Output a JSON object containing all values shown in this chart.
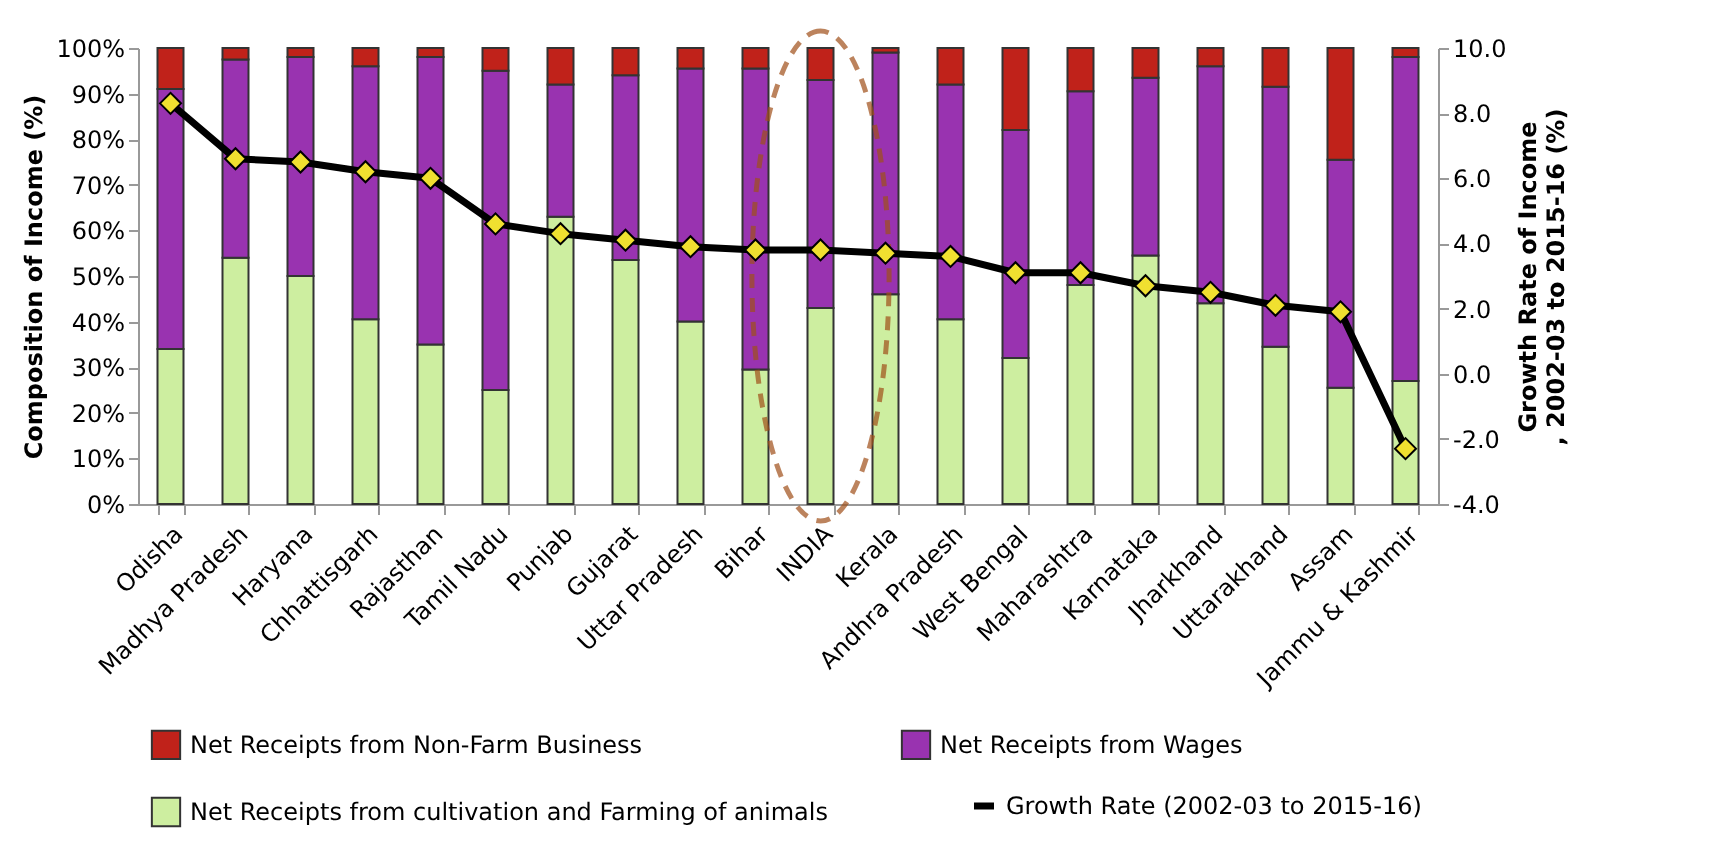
{
  "chart_data": {
    "type": "bar",
    "stacked": true,
    "ylabel": "Composition of Income (%)",
    "y2label": "Growth Rate of Income , 2002-03 to 2015-16 (%)",
    "categories": [
      "Odisha",
      "Madhya Pradesh",
      "Haryana",
      "Chhattisgarh",
      "Rajasthan",
      "Tamil Nadu",
      "Punjab",
      "Gujarat",
      "Uttar Pradesh",
      "Bihar",
      "INDIA",
      "Kerala",
      "Andhra Pradesh",
      "West Bengal",
      "Maharashtra",
      "Karnataka",
      "Jharkhand",
      "Uttarakhand",
      "Assam",
      "Jammu & Kashmir"
    ],
    "series": [
      {
        "name": "Net Receipts from cultivation and Farming of animals",
        "color": "#cdeea0",
        "values": [
          34,
          54,
          50,
          40.5,
          35,
          25,
          63,
          53.5,
          40,
          29.5,
          43,
          46,
          40.5,
          32,
          48,
          54.5,
          44,
          34.5,
          25.5,
          27
        ]
      },
      {
        "name": "Net Receipts from Wages",
        "color": "#9933b0",
        "values": [
          57,
          43.5,
          48,
          55.5,
          63,
          70,
          29,
          40.5,
          55.5,
          66,
          50,
          53,
          51.5,
          50,
          42.5,
          39,
          52,
          57,
          50,
          71
        ]
      },
      {
        "name": "Net Receipts from Non-Farm Business",
        "color": "#c0221a",
        "values": [
          9,
          2.5,
          2,
          4,
          2,
          5,
          8,
          6,
          4.5,
          4.5,
          7,
          1,
          8,
          18,
          9.5,
          6.5,
          4,
          8.5,
          24.5,
          2
        ]
      },
      {
        "name": "Growth Rate (2002-03 to 2015-16)",
        "type": "line",
        "axis": "y2",
        "color": "#000000",
        "marker": "diamond",
        "values": [
          8.3,
          6.6,
          6.5,
          6.2,
          6.0,
          4.6,
          4.3,
          4.1,
          3.9,
          3.8,
          3.8,
          3.7,
          3.6,
          3.1,
          3.1,
          2.7,
          2.5,
          2.1,
          1.9,
          -2.3
        ]
      }
    ],
    "ylim": [
      0,
      100
    ],
    "yticks": [
      {
        "value": 0,
        "label": "0%"
      },
      {
        "value": 10,
        "label": "10%"
      },
      {
        "value": 20,
        "label": "20%"
      },
      {
        "value": 30,
        "label": "30%"
      },
      {
        "value": 40,
        "label": "40%"
      },
      {
        "value": 50,
        "label": "50%"
      },
      {
        "value": 60,
        "label": "60%"
      },
      {
        "value": 70,
        "label": "70%"
      },
      {
        "value": 80,
        "label": "80%"
      },
      {
        "value": 90,
        "label": "90%"
      },
      {
        "value": 100,
        "label": "100%"
      }
    ],
    "y2lim": [
      -4,
      10
    ],
    "y2ticks": [
      {
        "value": -4,
        "label": "-4.0"
      },
      {
        "value": -2,
        "label": "-2.0"
      },
      {
        "value": 0,
        "label": "0.0"
      },
      {
        "value": 2,
        "label": "2.0"
      },
      {
        "value": 4,
        "label": "4.0"
      },
      {
        "value": 6,
        "label": "6.0"
      },
      {
        "value": 8,
        "label": "8.0"
      },
      {
        "value": 10,
        "label": "10.0"
      }
    ],
    "grid": false,
    "legend": "bottom"
  }
}
